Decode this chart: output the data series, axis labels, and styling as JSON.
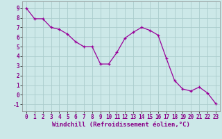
{
  "x": [
    0,
    1,
    2,
    3,
    4,
    5,
    6,
    7,
    8,
    9,
    10,
    11,
    12,
    13,
    14,
    15,
    16,
    17,
    18,
    19,
    20,
    21,
    22,
    23
  ],
  "y": [
    9.0,
    7.9,
    7.9,
    7.0,
    6.8,
    6.3,
    5.5,
    5.0,
    5.0,
    3.2,
    3.2,
    4.4,
    5.9,
    6.5,
    7.0,
    6.7,
    6.2,
    3.8,
    1.5,
    0.6,
    0.4,
    0.8,
    0.2,
    -0.9
  ],
  "line_color": "#990099",
  "marker": "+",
  "marker_size": 3,
  "bg_color": "#cce8e8",
  "grid_color": "#aacccc",
  "xlabel": "Windchill (Refroidissement éolien,°C)",
  "xlim": [
    -0.5,
    23.5
  ],
  "ylim": [
    -1.7,
    9.7
  ],
  "yticks": [
    -1,
    0,
    1,
    2,
    3,
    4,
    5,
    6,
    7,
    8,
    9
  ],
  "xticks": [
    0,
    1,
    2,
    3,
    4,
    5,
    6,
    7,
    8,
    9,
    10,
    11,
    12,
    13,
    14,
    15,
    16,
    17,
    18,
    19,
    20,
    21,
    22,
    23
  ],
  "tick_fontsize": 5.5,
  "label_fontsize": 6.5,
  "linewidth": 0.9,
  "markeredgewidth": 0.9
}
